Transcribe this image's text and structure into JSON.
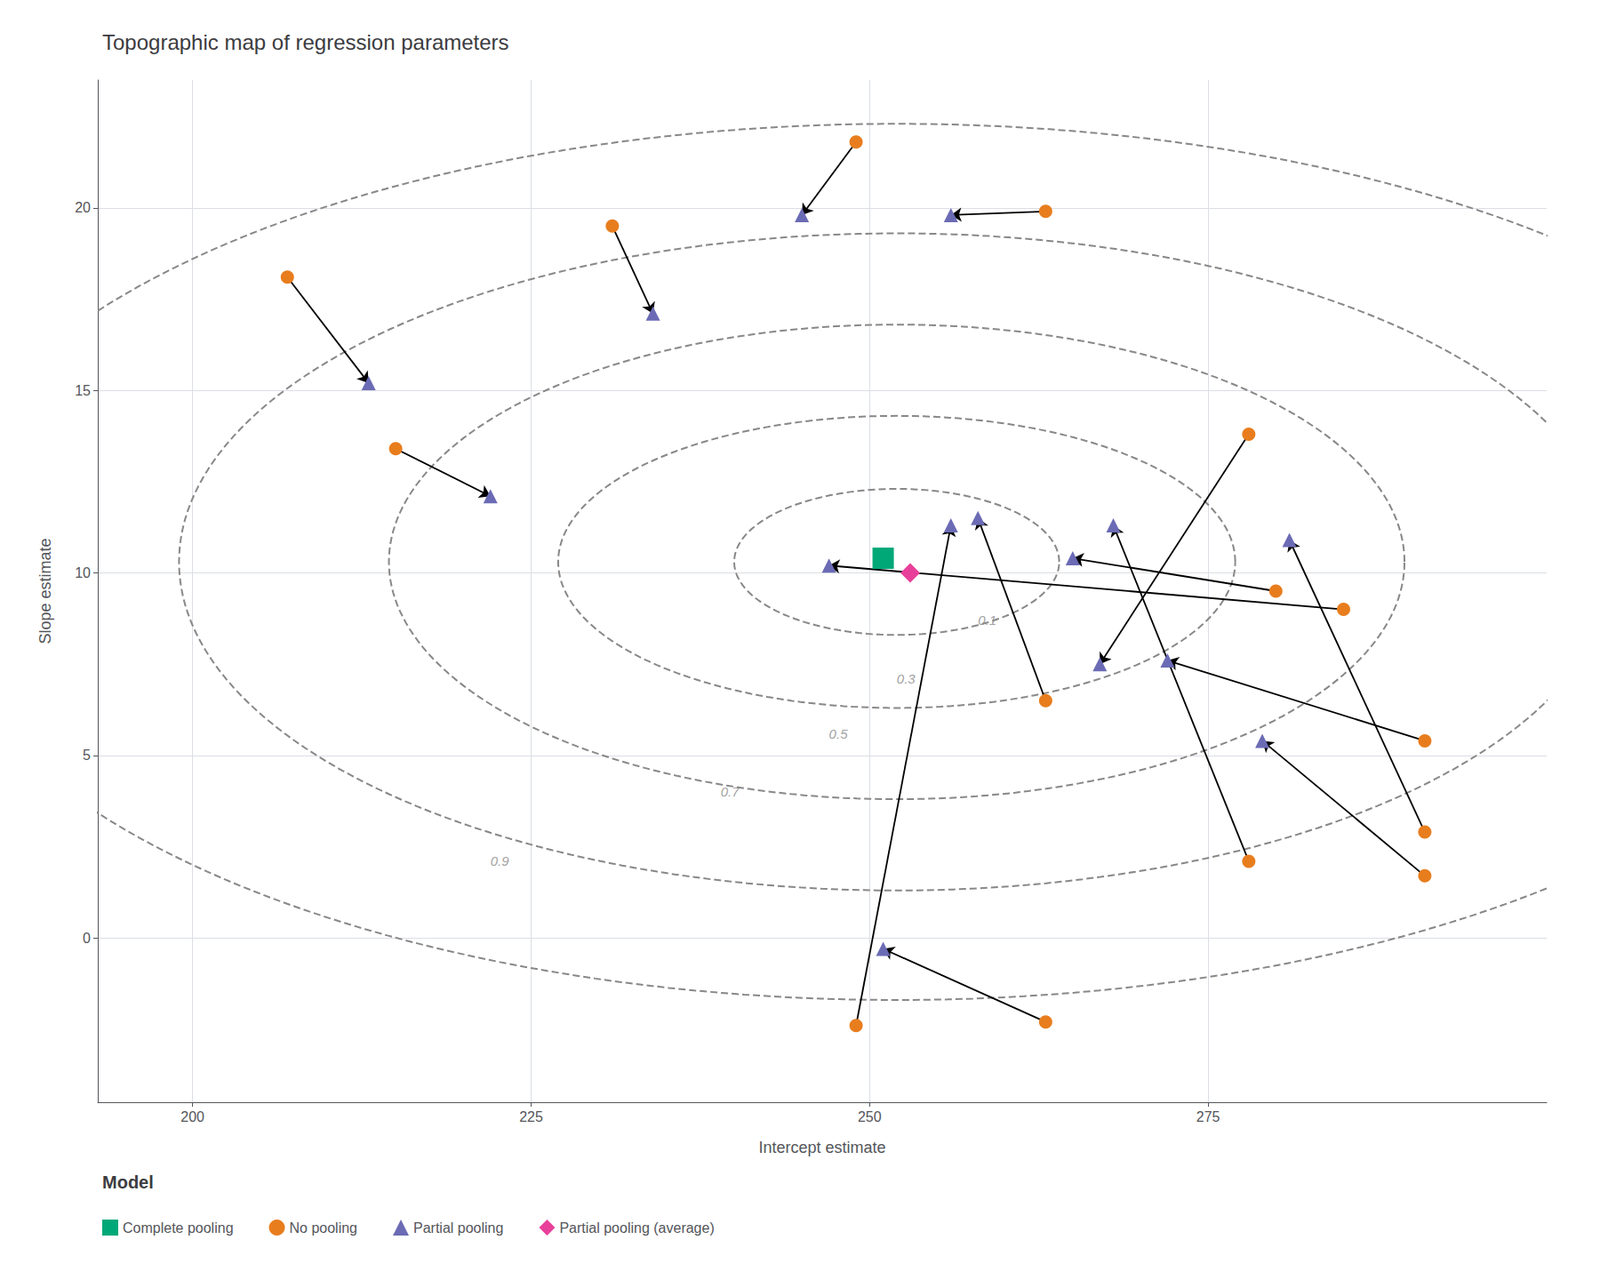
{
  "chart_data": {
    "type": "scatter",
    "title": "Topographic map of regression parameters",
    "x_label": "Intercept estimate",
    "y_label": "Slope estimate",
    "xlim": [
      193,
      300
    ],
    "ylim": [
      -4.5,
      23.5
    ],
    "xticks": [
      200,
      225,
      250,
      275
    ],
    "yticks": [
      0,
      5,
      10,
      15,
      20
    ],
    "grid": true,
    "legend": "bottom",
    "legend_title": "Model",
    "series": [
      {
        "name": "Complete pooling",
        "color": "#00A878",
        "marker": "square",
        "values": [
          [
            251,
            10.4
          ]
        ]
      },
      {
        "name": "No pooling",
        "color": "#E87D1E",
        "marker": "circle",
        "values": [
          [
            207,
            18.1
          ],
          [
            215,
            13.4
          ],
          [
            231,
            19.5
          ],
          [
            249,
            21.8
          ],
          [
            263,
            19.9
          ],
          [
            263,
            6.5
          ],
          [
            263,
            -2.3
          ],
          [
            249,
            -2.4
          ],
          [
            280,
            9.5
          ],
          [
            278,
            13.8
          ],
          [
            278,
            2.1
          ],
          [
            291,
            5.4
          ],
          [
            291,
            2.9
          ],
          [
            291,
            1.7
          ],
          [
            285,
            9.0
          ]
        ]
      },
      {
        "name": "Partial pooling",
        "color": "#6B6BB5",
        "marker": "triangle",
        "values": [
          [
            213,
            15.2
          ],
          [
            222,
            12.1
          ],
          [
            234,
            17.1
          ],
          [
            245,
            19.8
          ],
          [
            256,
            19.8
          ],
          [
            258,
            11.5
          ],
          [
            251,
            -0.3
          ],
          [
            256,
            11.3
          ],
          [
            265,
            10.4
          ],
          [
            267,
            7.5
          ],
          [
            268,
            11.3
          ],
          [
            272,
            7.6
          ],
          [
            281,
            10.9
          ],
          [
            279,
            5.4
          ],
          [
            247,
            10.2
          ]
        ]
      },
      {
        "name": "Partial pooling (average)",
        "color": "#E8409A",
        "marker": "diamond",
        "values": [
          [
            253,
            10.0
          ]
        ]
      }
    ],
    "arrows": {
      "from": "No pooling",
      "to": "Partial pooling",
      "color": "black",
      "pairs": [
        [
          0,
          0
        ],
        [
          1,
          1
        ],
        [
          2,
          2
        ],
        [
          3,
          3
        ],
        [
          4,
          4
        ],
        [
          5,
          5
        ],
        [
          6,
          6
        ],
        [
          7,
          7
        ],
        [
          8,
          8
        ],
        [
          9,
          9
        ],
        [
          10,
          10
        ],
        [
          11,
          11
        ],
        [
          12,
          12
        ],
        [
          13,
          13
        ],
        [
          14,
          14
        ]
      ]
    },
    "contours": {
      "center": [
        252,
        10.3
      ],
      "angle": 0,
      "levels": [
        "0.1",
        "0.3",
        "0.5",
        "0.7",
        "0.9"
      ],
      "widths": [
        24,
        50,
        75,
        106,
        144
      ],
      "heights": [
        4,
        8,
        13,
        18,
        24
      ],
      "label_positions": [
        [
          258,
          8.7
        ],
        [
          252,
          7.1
        ],
        [
          247,
          5.6
        ],
        [
          239,
          4.0
        ],
        [
          222,
          2.1
        ]
      ],
      "color": "#888888",
      "line_style": "dashed"
    }
  }
}
